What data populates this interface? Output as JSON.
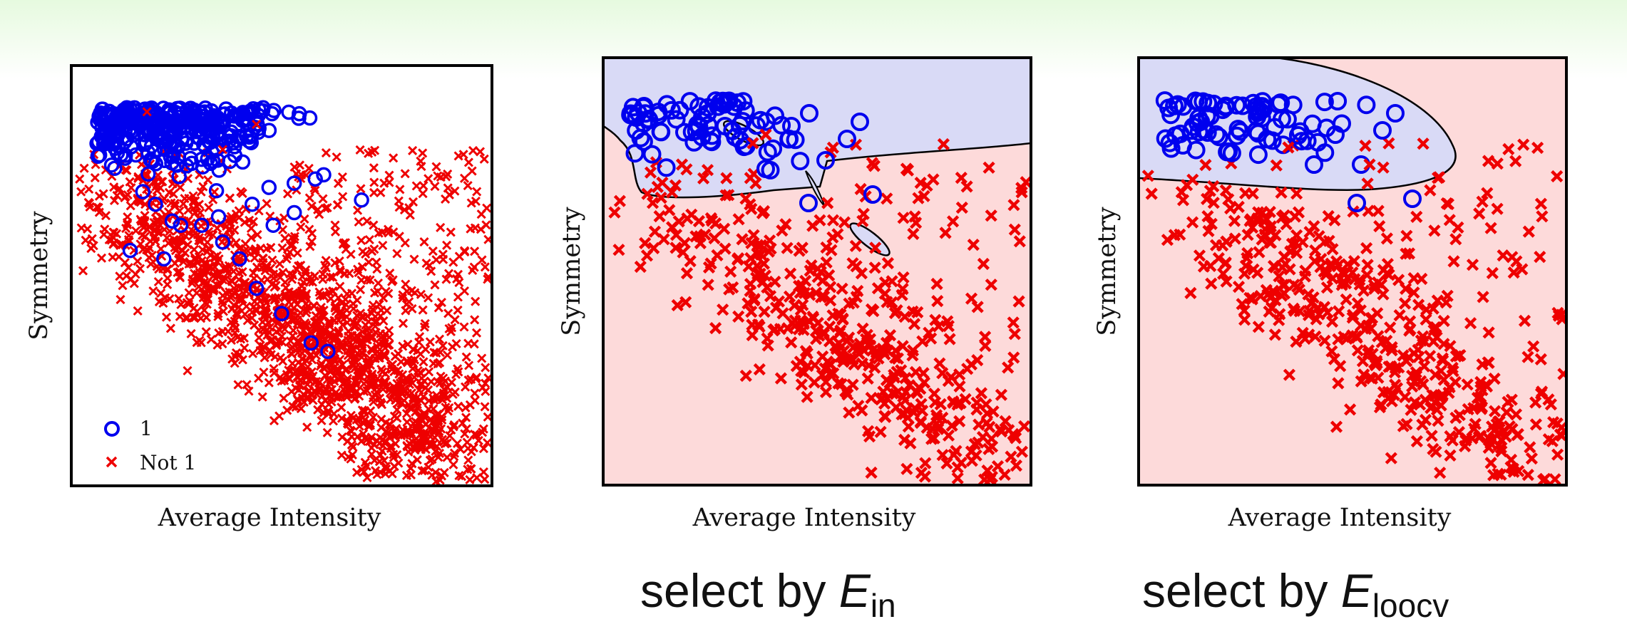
{
  "chart_data": [
    {
      "type": "scatter",
      "xlabel": "Average Intensity",
      "ylabel": "Symmetry",
      "legend": {
        "placement": "bottom-left",
        "entries": [
          {
            "label": "1",
            "marker": "circle",
            "color": "#0000ee"
          },
          {
            "label": "Not 1",
            "marker": "x",
            "color": "#ee0000"
          }
        ]
      },
      "series": [
        {
          "name": "1",
          "marker": "circle",
          "color": "#0000ee",
          "approx_points": 320
        },
        {
          "name": "Not 1",
          "marker": "x",
          "color": "#ee0000",
          "approx_points": 1700
        }
      ],
      "decision_region": null
    },
    {
      "type": "scatter",
      "xlabel": "Average Intensity",
      "ylabel": "Symmetry",
      "series": [
        {
          "marker": "circle",
          "color": "#0000ee",
          "approx_points": 75
        },
        {
          "marker": "x",
          "color": "#ee0000",
          "approx_points": 480
        }
      ],
      "decision_region": {
        "positive_color": "#d9daf6",
        "negative_color": "#fddada",
        "boundary": "irregular"
      }
    },
    {
      "type": "scatter",
      "xlabel": "Average Intensity",
      "ylabel": "Symmetry",
      "series": [
        {
          "marker": "circle",
          "color": "#0000ee",
          "approx_points": 75
        },
        {
          "marker": "x",
          "color": "#ee0000",
          "approx_points": 480
        }
      ],
      "decision_region": {
        "positive_color": "#d9daf6",
        "negative_color": "#fddada",
        "boundary": "smooth"
      }
    }
  ],
  "captions": [
    {
      "prefix": "select by ",
      "symbol": "E",
      "subscript": "in"
    },
    {
      "prefix": "select by ",
      "symbol": "E",
      "subscript": "loocv"
    }
  ]
}
